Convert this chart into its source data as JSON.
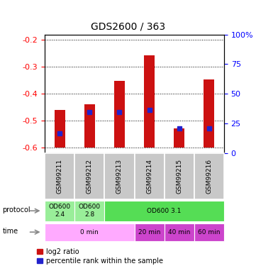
{
  "title": "GDS2600 / 363",
  "samples": [
    "GSM99211",
    "GSM99212",
    "GSM99213",
    "GSM99214",
    "GSM99215",
    "GSM99216"
  ],
  "log2_ratio": [
    -0.46,
    -0.44,
    -0.352,
    -0.258,
    -0.528,
    -0.348
  ],
  "bar_bottom": -0.6,
  "percentile_rank_pct": [
    13,
    33,
    33,
    35,
    18,
    18
  ],
  "ylim_left": [
    -0.62,
    -0.18
  ],
  "ylim_right": [
    -0.5,
    100.5
  ],
  "y_left_ticks": [
    -0.2,
    -0.3,
    -0.4,
    -0.5,
    -0.6
  ],
  "y_left_tick_labels": [
    "-0.2",
    "-0.3",
    "-0.4",
    "-0.5",
    "-0.6"
  ],
  "y_right_ticks": [
    100,
    75,
    50,
    25,
    0
  ],
  "y_right_tick_labels": [
    "100%",
    "75",
    "50",
    "25",
    "0"
  ],
  "bar_color": "#cc1111",
  "percentile_color": "#2222cc",
  "sample_box_color": "#c8c8c8",
  "protocol_data": [
    {
      "label": "OD600\n2.4",
      "start": 0,
      "end": 1,
      "color": "#99ee99"
    },
    {
      "label": "OD600\n2.8",
      "start": 1,
      "end": 2,
      "color": "#99ee99"
    },
    {
      "label": "OD600 3.1",
      "start": 2,
      "end": 6,
      "color": "#55dd55"
    }
  ],
  "time_data": [
    {
      "label": "0 min",
      "start": 0,
      "end": 3,
      "color": "#ffaaff"
    },
    {
      "label": "20 min",
      "start": 3,
      "end": 4,
      "color": "#cc44cc"
    },
    {
      "label": "40 min",
      "start": 4,
      "end": 5,
      "color": "#cc44cc"
    },
    {
      "label": "60 min",
      "start": 5,
      "end": 6,
      "color": "#cc44cc"
    }
  ],
  "bar_width": 0.35,
  "bg_color": "#ffffff",
  "grid_color": "black",
  "left_axis_color": "red",
  "right_axis_color": "blue"
}
